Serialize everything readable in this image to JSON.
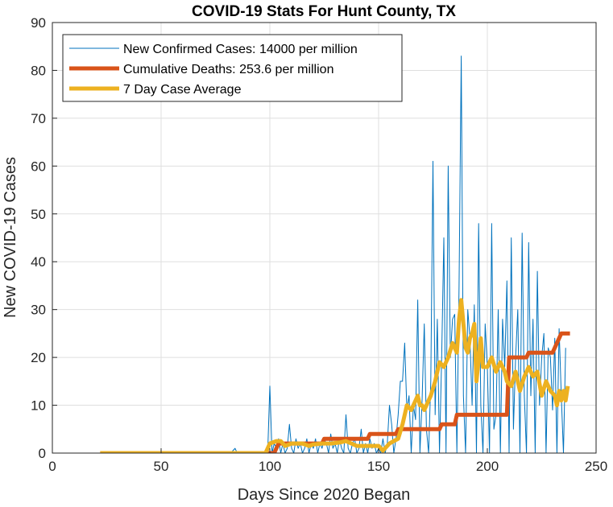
{
  "chart_data": {
    "type": "line",
    "title": "COVID-19 Stats For Hunt County, TX",
    "xlabel": "Days Since 2020 Began",
    "ylabel": "New COVID-19 Cases",
    "xlim": [
      0,
      250
    ],
    "ylim": [
      0,
      90
    ],
    "xticks": [
      0,
      50,
      100,
      150,
      200,
      250
    ],
    "yticks": [
      0,
      10,
      20,
      30,
      40,
      50,
      60,
      70,
      80,
      90
    ],
    "grid": true,
    "legend_position": "top-left",
    "series": [
      {
        "name": "New Confirmed Cases: 14000 per million",
        "color": "#0072bd",
        "width": 1,
        "points": [
          [
            22,
            0
          ],
          [
            82,
            0
          ],
          [
            84,
            1
          ],
          [
            85,
            0
          ],
          [
            99,
            0
          ],
          [
            100,
            14
          ],
          [
            101,
            0
          ],
          [
            102,
            2
          ],
          [
            103,
            1
          ],
          [
            104,
            3
          ],
          [
            105,
            0
          ],
          [
            106,
            2
          ],
          [
            107,
            0
          ],
          [
            108,
            1
          ],
          [
            109,
            6
          ],
          [
            110,
            1
          ],
          [
            111,
            0
          ],
          [
            112,
            3
          ],
          [
            113,
            1
          ],
          [
            114,
            2
          ],
          [
            115,
            0
          ],
          [
            116,
            1
          ],
          [
            117,
            3
          ],
          [
            118,
            0
          ],
          [
            119,
            2
          ],
          [
            120,
            1
          ],
          [
            121,
            3
          ],
          [
            122,
            0
          ],
          [
            123,
            2
          ],
          [
            124,
            1
          ],
          [
            125,
            3
          ],
          [
            126,
            2
          ],
          [
            127,
            0
          ],
          [
            128,
            4
          ],
          [
            129,
            1
          ],
          [
            130,
            2
          ],
          [
            131,
            0
          ],
          [
            132,
            3
          ],
          [
            133,
            1
          ],
          [
            134,
            0
          ],
          [
            135,
            8
          ],
          [
            136,
            1
          ],
          [
            137,
            0
          ],
          [
            138,
            2
          ],
          [
            139,
            3
          ],
          [
            140,
            0
          ],
          [
            141,
            1
          ],
          [
            142,
            5
          ],
          [
            143,
            0
          ],
          [
            144,
            2
          ],
          [
            145,
            0
          ],
          [
            146,
            3
          ],
          [
            147,
            1
          ],
          [
            148,
            2
          ],
          [
            149,
            0
          ],
          [
            150,
            1
          ],
          [
            151,
            0
          ],
          [
            152,
            3
          ],
          [
            153,
            0
          ],
          [
            154,
            2
          ],
          [
            155,
            10
          ],
          [
            156,
            6
          ],
          [
            157,
            0
          ],
          [
            158,
            3
          ],
          [
            159,
            8
          ],
          [
            160,
            15
          ],
          [
            161,
            15
          ],
          [
            162,
            23
          ],
          [
            163,
            9
          ],
          [
            164,
            12
          ],
          [
            165,
            0
          ],
          [
            166,
            10
          ],
          [
            167,
            7
          ],
          [
            168,
            32
          ],
          [
            169,
            0
          ],
          [
            170,
            11
          ],
          [
            171,
            27
          ],
          [
            172,
            5
          ],
          [
            173,
            0
          ],
          [
            174,
            15
          ],
          [
            175,
            61
          ],
          [
            176,
            8
          ],
          [
            177,
            28
          ],
          [
            178,
            0
          ],
          [
            179,
            20
          ],
          [
            180,
            45
          ],
          [
            181,
            0
          ],
          [
            182,
            60
          ],
          [
            183,
            20
          ],
          [
            184,
            28
          ],
          [
            185,
            29
          ],
          [
            186,
            0
          ],
          [
            187,
            35
          ],
          [
            188,
            83
          ],
          [
            189,
            12
          ],
          [
            190,
            0
          ],
          [
            191,
            30
          ],
          [
            192,
            24
          ],
          [
            193,
            10
          ],
          [
            194,
            31
          ],
          [
            195,
            0
          ],
          [
            196,
            48
          ],
          [
            197,
            10
          ],
          [
            198,
            0
          ],
          [
            199,
            27
          ],
          [
            200,
            18
          ],
          [
            201,
            0
          ],
          [
            202,
            48
          ],
          [
            203,
            5
          ],
          [
            204,
            8
          ],
          [
            205,
            30
          ],
          [
            206,
            0
          ],
          [
            207,
            28
          ],
          [
            208,
            18
          ],
          [
            209,
            36
          ],
          [
            210,
            0
          ],
          [
            211,
            45
          ],
          [
            212,
            5
          ],
          [
            213,
            20
          ],
          [
            214,
            30
          ],
          [
            215,
            0
          ],
          [
            216,
            46
          ],
          [
            217,
            12
          ],
          [
            218,
            0
          ],
          [
            219,
            44
          ],
          [
            220,
            12
          ],
          [
            221,
            28
          ],
          [
            222,
            0
          ],
          [
            223,
            38
          ],
          [
            224,
            10
          ],
          [
            225,
            20
          ],
          [
            226,
            25
          ],
          [
            227,
            0
          ],
          [
            228,
            22
          ],
          [
            229,
            20
          ],
          [
            230,
            9
          ],
          [
            231,
            24
          ],
          [
            232,
            0
          ],
          [
            233,
            26
          ],
          [
            234,
            12
          ],
          [
            235,
            0
          ],
          [
            236,
            22
          ]
        ]
      },
      {
        "name": "Cumulative Deaths: 253.6 per million",
        "color": "#d95319",
        "width": 5,
        "points": [
          [
            22,
            0
          ],
          [
            102,
            0
          ],
          [
            104,
            2
          ],
          [
            110,
            2
          ],
          [
            111,
            2
          ],
          [
            124,
            2
          ],
          [
            125,
            3
          ],
          [
            145,
            3
          ],
          [
            146,
            4
          ],
          [
            158,
            4
          ],
          [
            159,
            5
          ],
          [
            178,
            5
          ],
          [
            179,
            6
          ],
          [
            185,
            6
          ],
          [
            186,
            8
          ],
          [
            209,
            8
          ],
          [
            210,
            20
          ],
          [
            218,
            20
          ],
          [
            219,
            21
          ],
          [
            230,
            21
          ],
          [
            231,
            22
          ],
          [
            232,
            23
          ],
          [
            233,
            24
          ],
          [
            234,
            25
          ],
          [
            238,
            25
          ]
        ]
      },
      {
        "name": "7 Day Case Average",
        "color": "#edb120",
        "width": 5,
        "points": [
          [
            22,
            0
          ],
          [
            98,
            0
          ],
          [
            100,
            2
          ],
          [
            103,
            2.5
          ],
          [
            105,
            2.5
          ],
          [
            107,
            1.5
          ],
          [
            110,
            2
          ],
          [
            113,
            2
          ],
          [
            115,
            2
          ],
          [
            118,
            1.5
          ],
          [
            120,
            1.8
          ],
          [
            124,
            2
          ],
          [
            128,
            2
          ],
          [
            132,
            2.2
          ],
          [
            135,
            2.5
          ],
          [
            140,
            1.5
          ],
          [
            145,
            1.5
          ],
          [
            150,
            1.5
          ],
          [
            152,
            0.5
          ],
          [
            155,
            2
          ],
          [
            157,
            2.5
          ],
          [
            159,
            3
          ],
          [
            161,
            6
          ],
          [
            163,
            10
          ],
          [
            165,
            9
          ],
          [
            167,
            11
          ],
          [
            168,
            12
          ],
          [
            169,
            10
          ],
          [
            170,
            10
          ],
          [
            171,
            9
          ],
          [
            172,
            10
          ],
          [
            174,
            12
          ],
          [
            176,
            15
          ],
          [
            178,
            19
          ],
          [
            180,
            18
          ],
          [
            182,
            20
          ],
          [
            184,
            23
          ],
          [
            186,
            21
          ],
          [
            187,
            28
          ],
          [
            188,
            32
          ],
          [
            189,
            27
          ],
          [
            190,
            22
          ],
          [
            191,
            21
          ],
          [
            192,
            24
          ],
          [
            193,
            25
          ],
          [
            194,
            27
          ],
          [
            195,
            15
          ],
          [
            197,
            24
          ],
          [
            198,
            18
          ],
          [
            200,
            18
          ],
          [
            202,
            20
          ],
          [
            204,
            17
          ],
          [
            206,
            19
          ],
          [
            208,
            17
          ],
          [
            209,
            15
          ],
          [
            211,
            14
          ],
          [
            213,
            17
          ],
          [
            215,
            13
          ],
          [
            217,
            16
          ],
          [
            219,
            18
          ],
          [
            221,
            16
          ],
          [
            223,
            17
          ],
          [
            225,
            12
          ],
          [
            227,
            15
          ],
          [
            229,
            13
          ],
          [
            231,
            12
          ],
          [
            232,
            10
          ],
          [
            233,
            13
          ],
          [
            234,
            11
          ],
          [
            235,
            13
          ],
          [
            236,
            11
          ],
          [
            237,
            14
          ]
        ]
      }
    ]
  }
}
